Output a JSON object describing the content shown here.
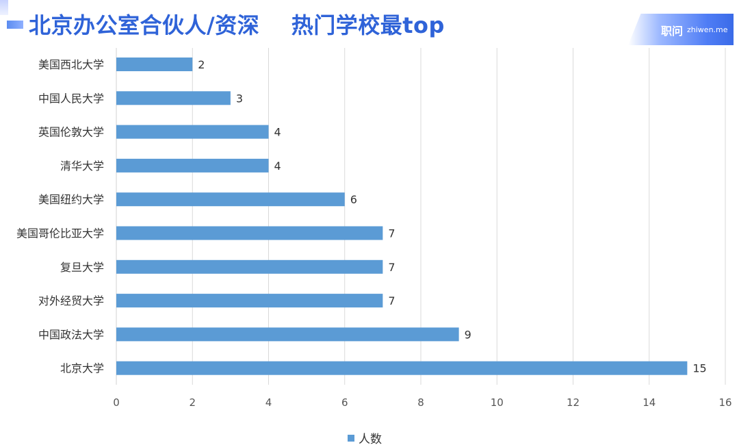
{
  "header": {
    "title": "北京办公室合伙人/资深    热门学校最top"
  },
  "brand": {
    "name": "职问",
    "url": "zhiwen.me"
  },
  "chart_data": {
    "type": "bar",
    "orientation": "horizontal",
    "categories": [
      "美国西北大学",
      "中国人民大学",
      "英国伦敦大学",
      "清华大学",
      "美国纽约大学",
      "美国哥伦比亚大学",
      "复旦大学",
      "对外经贸大学",
      "中国政法大学",
      "北京大学"
    ],
    "series": [
      {
        "name": "人数",
        "values": [
          2,
          3,
          4,
          4,
          6,
          7,
          7,
          7,
          9,
          15
        ]
      }
    ],
    "xlim": [
      0,
      16
    ],
    "xticks": [
      0,
      2,
      4,
      6,
      8,
      10,
      12,
      14,
      16
    ],
    "grid": "vertical",
    "legend": "bottom-center",
    "colors": {
      "bar": "#5b9bd5",
      "grid": "#d9d9d9"
    }
  }
}
